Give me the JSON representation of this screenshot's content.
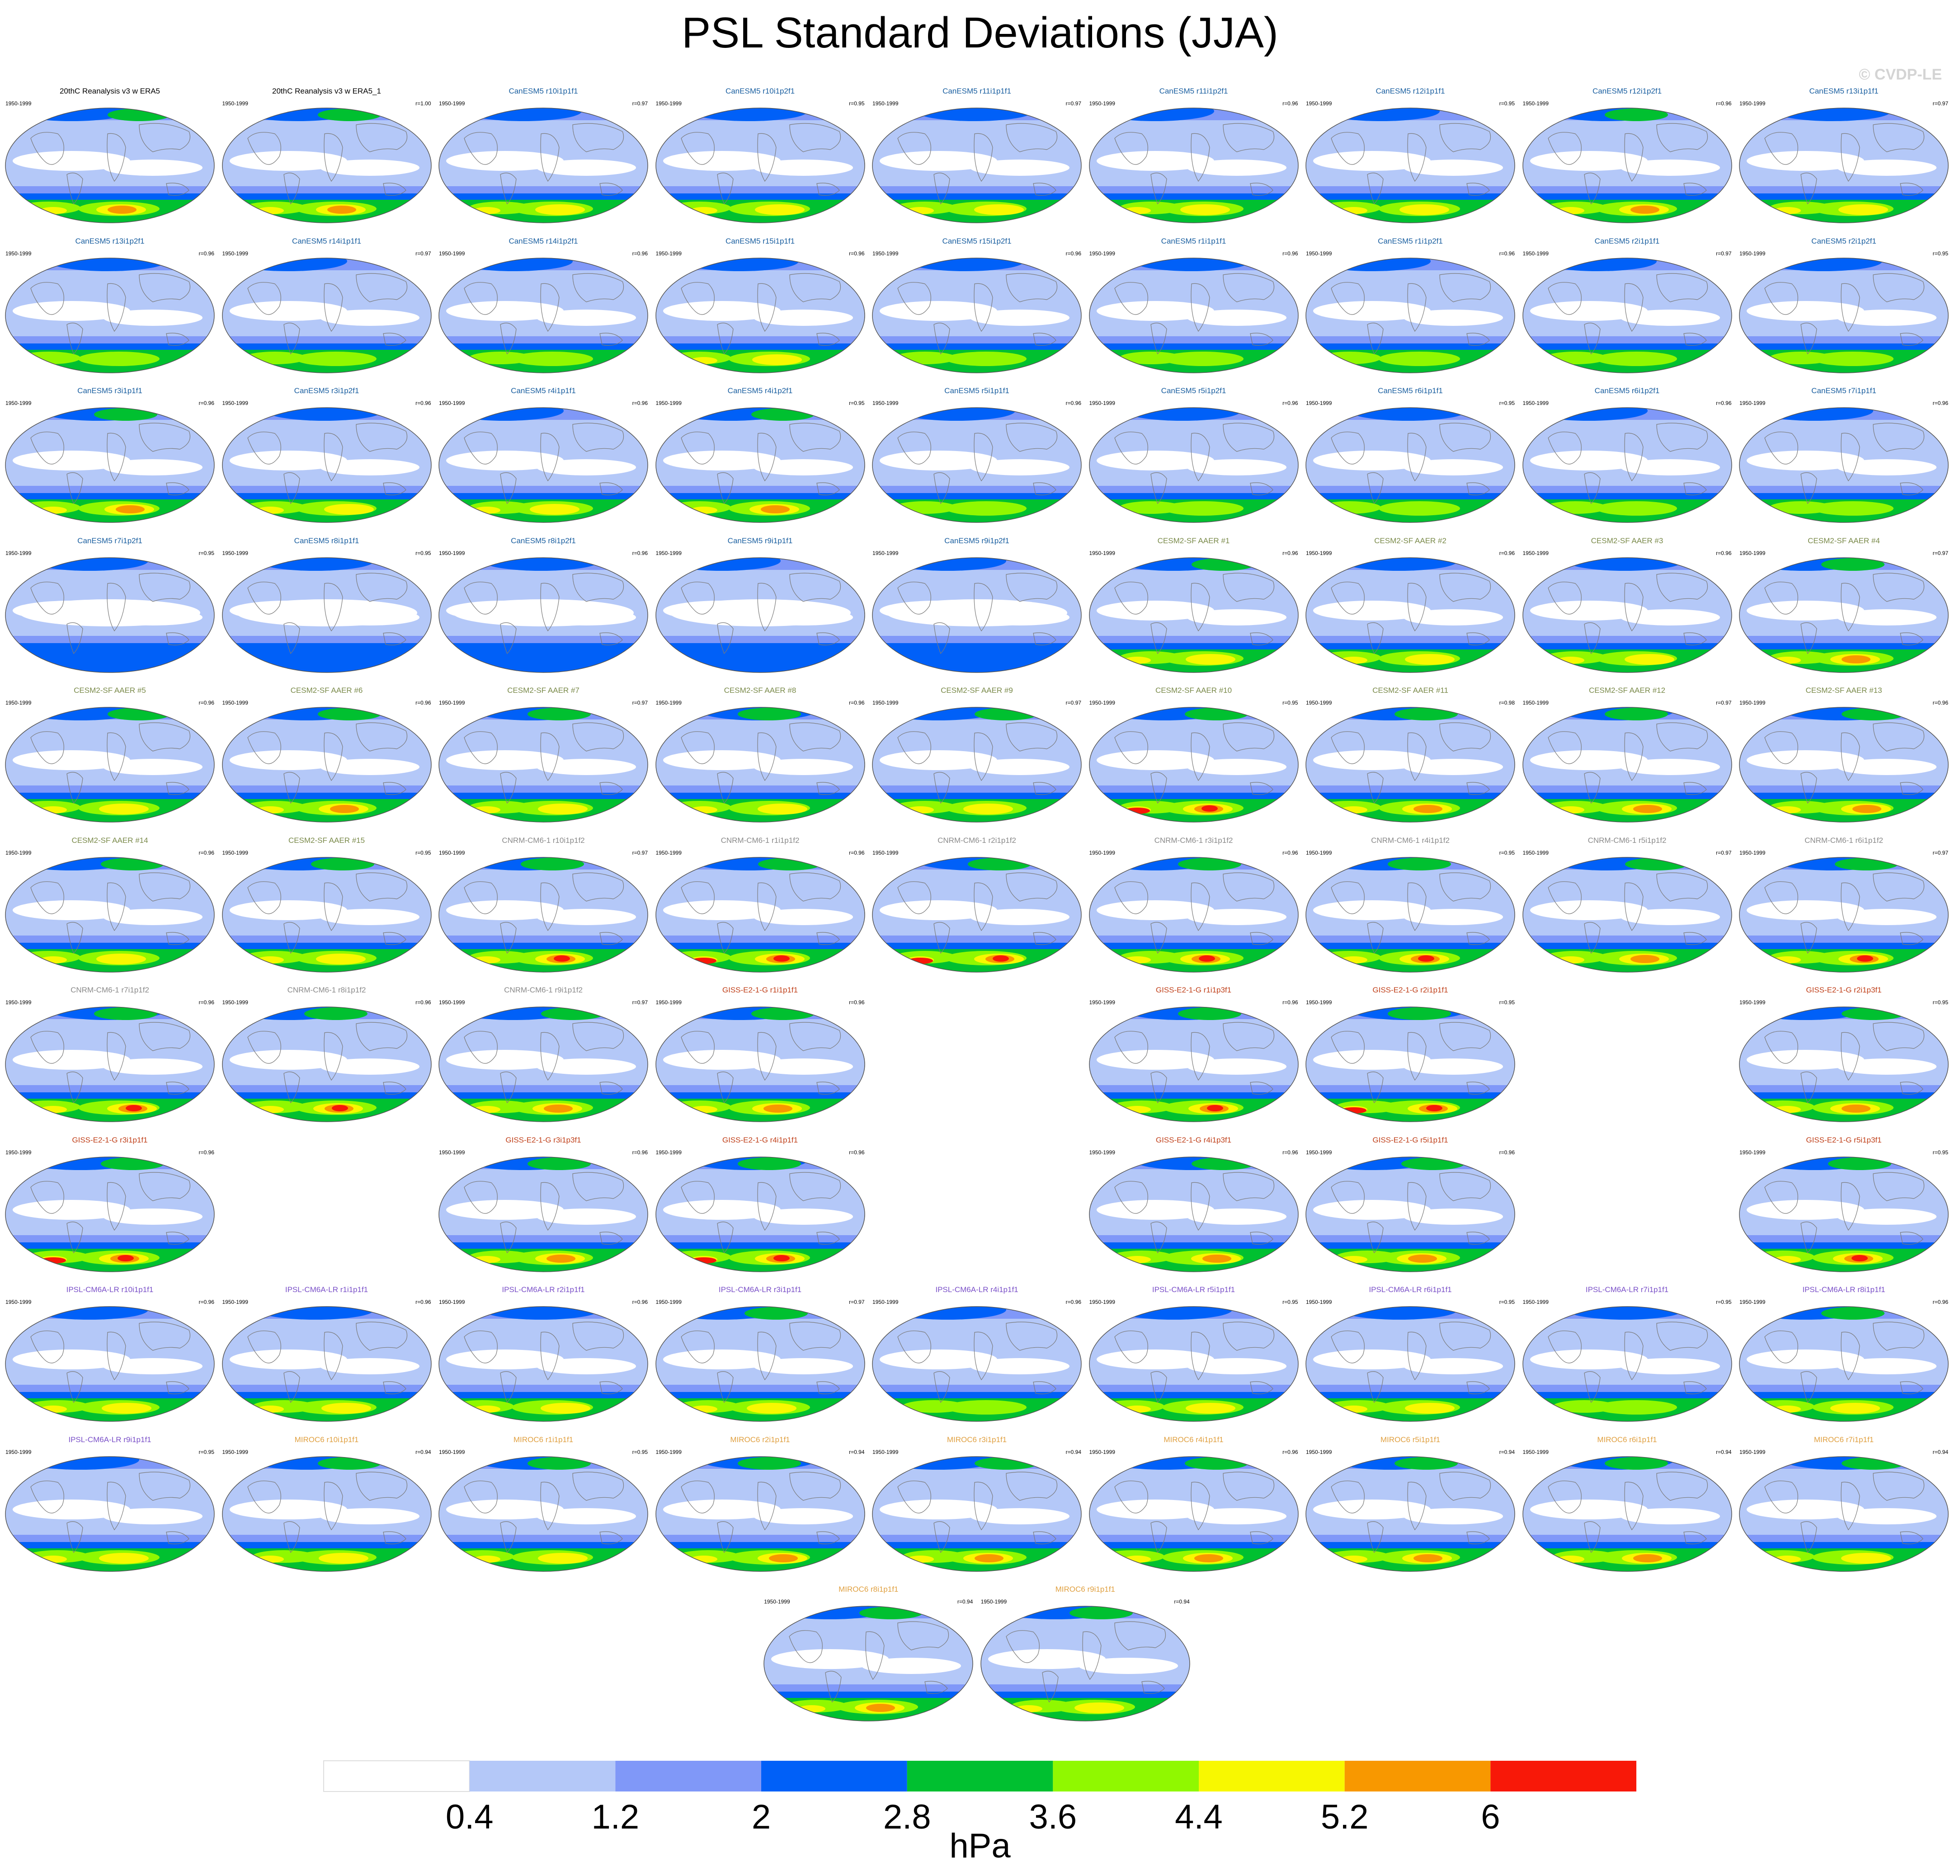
{
  "title": "PSL Standard Deviations (JJA)",
  "watermark": "© CVDP-LE",
  "chart_data": {
    "type": "heatmap",
    "description_units": "hPa",
    "colorbar": {
      "levels": [
        0.4,
        1.2,
        2,
        2.8,
        3.6,
        4.4,
        5.2,
        6
      ],
      "level_labels": [
        "0.4",
        "1.2",
        "2",
        "2.8",
        "3.6",
        "4.4",
        "5.2",
        "6"
      ],
      "colors": [
        "#ffffff",
        "#b4c8f8",
        "#8098f8",
        "#0060f8",
        "#00c030",
        "#90f800",
        "#f8f800",
        "#f89800",
        "#f81808"
      ],
      "units": "hPa"
    },
    "panels": [
      {
        "title": "20thC Reanalysis v3 w ERA5",
        "period": "1950-1999",
        "r": "",
        "row": 0,
        "col": 0,
        "color": "#000000",
        "strength": 1.0
      },
      {
        "title": "20thC Reanalysis v3 w ERA5_1",
        "period": "1950-1999",
        "r": "r=1.00",
        "row": 0,
        "col": 1,
        "color": "#000000",
        "strength": 1.0
      },
      {
        "title": "CanESM5 r10i1p1f1",
        "period": "1950-1999",
        "r": "r=0.97",
        "row": 0,
        "col": 2,
        "color": "#1a5fa0",
        "strength": 0.9
      },
      {
        "title": "CanESM5 r10i1p2f1",
        "period": "1950-1999",
        "r": "r=0.95",
        "row": 0,
        "col": 3,
        "color": "#1a5fa0",
        "strength": 0.9
      },
      {
        "title": "CanESM5 r11i1p1f1",
        "period": "1950-1999",
        "r": "r=0.97",
        "row": 0,
        "col": 4,
        "color": "#1a5fa0",
        "strength": 0.9
      },
      {
        "title": "CanESM5 r11i1p2f1",
        "period": "1950-1999",
        "r": "r=0.96",
        "row": 0,
        "col": 5,
        "color": "#1a5fa0",
        "strength": 0.9
      },
      {
        "title": "CanESM5 r12i1p1f1",
        "period": "1950-1999",
        "r": "r=0.95",
        "row": 0,
        "col": 6,
        "color": "#1a5fa0",
        "strength": 0.9
      },
      {
        "title": "CanESM5 r12i1p2f1",
        "period": "1950-1999",
        "r": "r=0.96",
        "row": 0,
        "col": 7,
        "color": "#1a5fa0",
        "strength": 1.0
      },
      {
        "title": "CanESM5 r13i1p1f1",
        "period": "1950-1999",
        "r": "r=0.97",
        "row": 0,
        "col": 8,
        "color": "#1a5fa0",
        "strength": 0.9
      },
      {
        "title": "CanESM5 r13i1p2f1",
        "period": "1950-1999",
        "r": "r=0.96",
        "row": 1,
        "col": 0,
        "color": "#1a5fa0",
        "strength": 0.85
      },
      {
        "title": "CanESM5 r14i1p1f1",
        "period": "1950-1999",
        "r": "r=0.97",
        "row": 1,
        "col": 1,
        "color": "#1a5fa0",
        "strength": 0.85
      },
      {
        "title": "CanESM5 r14i1p2f1",
        "period": "1950-1999",
        "r": "r=0.96",
        "row": 1,
        "col": 2,
        "color": "#1a5fa0",
        "strength": 0.85
      },
      {
        "title": "CanESM5 r15i1p1f1",
        "period": "1950-1999",
        "r": "r=0.96",
        "row": 1,
        "col": 3,
        "color": "#1a5fa0",
        "strength": 0.9
      },
      {
        "title": "CanESM5 r15i1p2f1",
        "period": "1950-1999",
        "r": "r=0.96",
        "row": 1,
        "col": 4,
        "color": "#1a5fa0",
        "strength": 0.85
      },
      {
        "title": "CanESM5 r1i1p1f1",
        "period": "1950-1999",
        "r": "r=0.96",
        "row": 1,
        "col": 5,
        "color": "#1a5fa0",
        "strength": 0.85
      },
      {
        "title": "CanESM5 r1i1p2f1",
        "period": "1950-1999",
        "r": "r=0.96",
        "row": 1,
        "col": 6,
        "color": "#1a5fa0",
        "strength": 0.85
      },
      {
        "title": "CanESM5 r2i1p1f1",
        "period": "1950-1999",
        "r": "r=0.97",
        "row": 1,
        "col": 7,
        "color": "#1a5fa0",
        "strength": 0.85
      },
      {
        "title": "CanESM5 r2i1p2f1",
        "period": "1950-1999",
        "r": "r=0.95",
        "row": 1,
        "col": 8,
        "color": "#1a5fa0",
        "strength": 0.85
      },
      {
        "title": "CanESM5 r3i1p1f1",
        "period": "1950-1999",
        "r": "r=0.96",
        "row": 2,
        "col": 0,
        "color": "#1a5fa0",
        "strength": 1.05
      },
      {
        "title": "CanESM5 r3i1p2f1",
        "period": "1950-1999",
        "r": "r=0.96",
        "row": 2,
        "col": 1,
        "color": "#1a5fa0",
        "strength": 0.9
      },
      {
        "title": "CanESM5 r4i1p1f1",
        "period": "1950-1999",
        "r": "r=0.96",
        "row": 2,
        "col": 2,
        "color": "#1a5fa0",
        "strength": 0.9
      },
      {
        "title": "CanESM5 r4i1p2f1",
        "period": "1950-1999",
        "r": "r=0.95",
        "row": 2,
        "col": 3,
        "color": "#1a5fa0",
        "strength": 1.0
      },
      {
        "title": "CanESM5 r5i1p1f1",
        "period": "1950-1999",
        "r": "r=0.96",
        "row": 2,
        "col": 4,
        "color": "#1a5fa0",
        "strength": 0.8
      },
      {
        "title": "CanESM5 r5i1p2f1",
        "period": "1950-1999",
        "r": "r=0.96",
        "row": 2,
        "col": 5,
        "color": "#1a5fa0",
        "strength": 0.8
      },
      {
        "title": "CanESM5 r6i1p1f1",
        "period": "1950-1999",
        "r": "r=0.95",
        "row": 2,
        "col": 6,
        "color": "#1a5fa0",
        "strength": 0.85
      },
      {
        "title": "CanESM5 r6i1p2f1",
        "period": "1950-1999",
        "r": "r=0.96",
        "row": 2,
        "col": 7,
        "color": "#1a5fa0",
        "strength": 0.85
      },
      {
        "title": "CanESM5 r7i1p1f1",
        "period": "1950-1999",
        "r": "r=0.96",
        "row": 2,
        "col": 8,
        "color": "#1a5fa0",
        "strength": 0.85
      },
      {
        "title": "CanESM5 r7i1p2f1",
        "period": "1950-1999",
        "r": "r=0.95",
        "row": 3,
        "col": 0,
        "color": "#1a5fa0",
        "strength": 0.55
      },
      {
        "title": "CanESM5 r8i1p1f1",
        "period": "1950-1999",
        "r": "r=0.95",
        "row": 3,
        "col": 1,
        "color": "#1a5fa0",
        "strength": 0.55
      },
      {
        "title": "CanESM5 r8i1p2f1",
        "period": "1950-1999",
        "r": "r=0.96",
        "row": 3,
        "col": 2,
        "color": "#1a5fa0",
        "strength": 0.55
      },
      {
        "title": "CanESM5 r9i1p1f1",
        "period": "1950-1999",
        "r": "",
        "row": 3,
        "col": 3,
        "color": "#1a5fa0",
        "strength": 0.55
      },
      {
        "title": "CanESM5 r9i1p2f1",
        "period": "1950-1999",
        "r": "",
        "row": 3,
        "col": 4,
        "color": "#1a5fa0",
        "strength": 0.55
      },
      {
        "title": "CESM2-SF AAER #1",
        "period": "1950-1999",
        "r": "r=0.96",
        "row": 3,
        "col": 5,
        "color": "#7a8a4a",
        "strength": 0.95
      },
      {
        "title": "CESM2-SF AAER #2",
        "period": "1950-1999",
        "r": "r=0.96",
        "row": 3,
        "col": 6,
        "color": "#7a8a4a",
        "strength": 0.9
      },
      {
        "title": "CESM2-SF AAER #3",
        "period": "1950-1999",
        "r": "r=0.96",
        "row": 3,
        "col": 7,
        "color": "#7a8a4a",
        "strength": 0.9
      },
      {
        "title": "CESM2-SF AAER #4",
        "period": "1950-1999",
        "r": "r=0.97",
        "row": 3,
        "col": 8,
        "color": "#7a8a4a",
        "strength": 1.0
      },
      {
        "title": "CESM2-SF AAER #5",
        "period": "1950-1999",
        "r": "r=0.96",
        "row": 4,
        "col": 0,
        "color": "#7a8a4a",
        "strength": 0.95
      },
      {
        "title": "CESM2-SF AAER #6",
        "period": "1950-1999",
        "r": "r=0.96",
        "row": 4,
        "col": 1,
        "color": "#7a8a4a",
        "strength": 1.0
      },
      {
        "title": "CESM2-SF AAER #7",
        "period": "1950-1999",
        "r": "r=0.97",
        "row": 4,
        "col": 2,
        "color": "#7a8a4a",
        "strength": 0.95
      },
      {
        "title": "CESM2-SF AAER #8",
        "period": "1950-1999",
        "r": "r=0.96",
        "row": 4,
        "col": 3,
        "color": "#7a8a4a",
        "strength": 0.95
      },
      {
        "title": "CESM2-SF AAER #9",
        "period": "1950-1999",
        "r": "r=0.97",
        "row": 4,
        "col": 4,
        "color": "#7a8a4a",
        "strength": 0.95
      },
      {
        "title": "CESM2-SF AAER #10",
        "period": "1950-1999",
        "r": "r=0.95",
        "row": 4,
        "col": 5,
        "color": "#7a8a4a",
        "strength": 1.25
      },
      {
        "title": "CESM2-SF AAER #11",
        "period": "1950-1999",
        "r": "r=0.98",
        "row": 4,
        "col": 6,
        "color": "#7a8a4a",
        "strength": 1.0
      },
      {
        "title": "CESM2-SF AAER #12",
        "period": "1950-1999",
        "r": "r=0.97",
        "row": 4,
        "col": 7,
        "color": "#7a8a4a",
        "strength": 1.1
      },
      {
        "title": "CESM2-SF AAER #13",
        "period": "1950-1999",
        "r": "r=0.96",
        "row": 4,
        "col": 8,
        "color": "#7a8a4a",
        "strength": 1.0
      },
      {
        "title": "CESM2-SF AAER #14",
        "period": "1950-1999",
        "r": "r=0.96",
        "row": 5,
        "col": 0,
        "color": "#7a8a4a",
        "strength": 0.95
      },
      {
        "title": "CESM2-SF AAER #15",
        "period": "1950-1999",
        "r": "r=0.95",
        "row": 5,
        "col": 1,
        "color": "#7a8a4a",
        "strength": 0.95
      },
      {
        "title": "CNRM-CM6-1 r10i1p1f2",
        "period": "1950-1999",
        "r": "r=0.97",
        "row": 5,
        "col": 2,
        "color": "#8a8a8a",
        "strength": 1.15
      },
      {
        "title": "CNRM-CM6-1 r1i1p1f2",
        "period": "1950-1999",
        "r": "r=0.96",
        "row": 5,
        "col": 3,
        "color": "#8a8a8a",
        "strength": 1.25
      },
      {
        "title": "CNRM-CM6-1 r2i1p1f2",
        "period": "1950-1999",
        "r": "",
        "row": 5,
        "col": 4,
        "color": "#8a8a8a",
        "strength": 1.2
      },
      {
        "title": "CNRM-CM6-1 r3i1p1f2",
        "period": "1950-1999",
        "r": "r=0.96",
        "row": 5,
        "col": 5,
        "color": "#8a8a8a",
        "strength": 1.15
      },
      {
        "title": "CNRM-CM6-1 r4i1p1f2",
        "period": "1950-1999",
        "r": "r=0.95",
        "row": 5,
        "col": 6,
        "color": "#8a8a8a",
        "strength": 1.15
      },
      {
        "title": "CNRM-CM6-1 r5i1p1f2",
        "period": "1950-1999",
        "r": "r=0.97",
        "row": 5,
        "col": 7,
        "color": "#8a8a8a",
        "strength": 1.05
      },
      {
        "title": "CNRM-CM6-1 r6i1p1f2",
        "period": "1950-1999",
        "r": "r=0.97",
        "row": 5,
        "col": 8,
        "color": "#8a8a8a",
        "strength": 1.15
      },
      {
        "title": "CNRM-CM6-1 r7i1p1f2",
        "period": "1950-1999",
        "r": "r=0.96",
        "row": 6,
        "col": 0,
        "color": "#8a8a8a",
        "strength": 1.15
      },
      {
        "title": "CNRM-CM6-1 r8i1p1f2",
        "period": "1950-1999",
        "r": "r=0.96",
        "row": 6,
        "col": 1,
        "color": "#8a8a8a",
        "strength": 1.15
      },
      {
        "title": "CNRM-CM6-1 r9i1p1f2",
        "period": "1950-1999",
        "r": "r=0.97",
        "row": 6,
        "col": 2,
        "color": "#8a8a8a",
        "strength": 1.1
      },
      {
        "title": "GISS-E2-1-G r1i1p1f1",
        "period": "1950-1999",
        "r": "r=0.96",
        "row": 6,
        "col": 3,
        "color": "#c0401a",
        "strength": 1.1
      },
      {
        "title": "GISS-E2-1-G r1i1p3f1",
        "period": "1950-1999",
        "r": "r=0.96",
        "row": 6,
        "col": 5,
        "color": "#c0401a",
        "strength": 1.15
      },
      {
        "title": "GISS-E2-1-G r2i1p1f1",
        "period": "1950-1999",
        "r": "r=0.95",
        "row": 6,
        "col": 6,
        "color": "#c0401a",
        "strength": 1.2
      },
      {
        "title": "GISS-E2-1-G r2i1p3f1",
        "period": "1950-1999",
        "r": "r=0.95",
        "row": 6,
        "col": 8,
        "color": "#c0401a",
        "strength": 1.0
      },
      {
        "title": "GISS-E2-1-G r3i1p1f1",
        "period": "1950-1999",
        "r": "r=0.96",
        "row": 7,
        "col": 0,
        "color": "#c0401a",
        "strength": 1.2
      },
      {
        "title": "GISS-E2-1-G r3i1p3f1",
        "period": "1950-1999",
        "r": "r=0.96",
        "row": 7,
        "col": 2,
        "color": "#c0401a",
        "strength": 1.1
      },
      {
        "title": "GISS-E2-1-G r4i1p1f1",
        "period": "1950-1999",
        "r": "r=0.96",
        "row": 7,
        "col": 3,
        "color": "#c0401a",
        "strength": 1.2
      },
      {
        "title": "GISS-E2-1-G r4i1p3f1",
        "period": "1950-1999",
        "r": "r=0.96",
        "row": 7,
        "col": 5,
        "color": "#c0401a",
        "strength": 1.1
      },
      {
        "title": "GISS-E2-1-G r5i1p1f1",
        "period": "1950-1999",
        "r": "r=0.96",
        "row": 7,
        "col": 6,
        "color": "#c0401a",
        "strength": 1.1
      },
      {
        "title": "GISS-E2-1-G r5i1p3f1",
        "period": "1950-1999",
        "r": "r=0.95",
        "row": 7,
        "col": 8,
        "color": "#c0401a",
        "strength": 1.15
      },
      {
        "title": "IPSL-CM6A-LR r10i1p1f1",
        "period": "1950-1999",
        "r": "r=0.96",
        "row": 8,
        "col": 0,
        "color": "#7a50c8",
        "strength": 0.9
      },
      {
        "title": "IPSL-CM6A-LR r1i1p1f1",
        "period": "1950-1999",
        "r": "r=0.96",
        "row": 8,
        "col": 1,
        "color": "#7a50c8",
        "strength": 0.9
      },
      {
        "title": "IPSL-CM6A-LR r2i1p1f1",
        "period": "1950-1999",
        "r": "r=0.96",
        "row": 8,
        "col": 2,
        "color": "#7a50c8",
        "strength": 0.9
      },
      {
        "title": "IPSL-CM6A-LR r3i1p1f1",
        "period": "1950-1999",
        "r": "r=0.97",
        "row": 8,
        "col": 3,
        "color": "#7a50c8",
        "strength": 0.95
      },
      {
        "title": "IPSL-CM6A-LR r4i1p1f1",
        "period": "1950-1999",
        "r": "r=0.96",
        "row": 8,
        "col": 4,
        "color": "#7a50c8",
        "strength": 0.85
      },
      {
        "title": "IPSL-CM6A-LR r5i1p1f1",
        "period": "1950-1999",
        "r": "r=0.95",
        "row": 8,
        "col": 5,
        "color": "#7a50c8",
        "strength": 0.9
      },
      {
        "title": "IPSL-CM6A-LR r6i1p1f1",
        "period": "1950-1999",
        "r": "r=0.95",
        "row": 8,
        "col": 6,
        "color": "#7a50c8",
        "strength": 0.9
      },
      {
        "title": "IPSL-CM6A-LR r7i1p1f1",
        "period": "1950-1999",
        "r": "r=0.95",
        "row": 8,
        "col": 7,
        "color": "#7a50c8",
        "strength": 0.85
      },
      {
        "title": "IPSL-CM6A-LR r8i1p1f1",
        "period": "1950-1999",
        "r": "r=0.96",
        "row": 8,
        "col": 8,
        "color": "#7a50c8",
        "strength": 0.95
      },
      {
        "title": "IPSL-CM6A-LR r9i1p1f1",
        "period": "1950-1999",
        "r": "r=0.95",
        "row": 9,
        "col": 0,
        "color": "#7a50c8",
        "strength": 0.9
      },
      {
        "title": "MIROC6 r10i1p1f1",
        "period": "1950-1999",
        "r": "r=0.94",
        "row": 9,
        "col": 1,
        "color": "#e0a040",
        "strength": 0.95
      },
      {
        "title": "MIROC6 r1i1p1f1",
        "period": "1950-1999",
        "r": "r=0.95",
        "row": 9,
        "col": 2,
        "color": "#e0a040",
        "strength": 0.95
      },
      {
        "title": "MIROC6 r2i1p1f1",
        "period": "1950-1999",
        "r": "r=0.94",
        "row": 9,
        "col": 3,
        "color": "#e0a040",
        "strength": 1.0
      },
      {
        "title": "MIROC6 r3i1p1f1",
        "period": "1950-1999",
        "r": "r=0.94",
        "row": 9,
        "col": 4,
        "color": "#e0a040",
        "strength": 1.05
      },
      {
        "title": "MIROC6 r4i1p1f1",
        "period": "1950-1999",
        "r": "r=0.96",
        "row": 9,
        "col": 5,
        "color": "#e0a040",
        "strength": 1.0
      },
      {
        "title": "MIROC6 r5i1p1f1",
        "period": "1950-1999",
        "r": "r=0.94",
        "row": 9,
        "col": 6,
        "color": "#e0a040",
        "strength": 1.0
      },
      {
        "title": "MIROC6 r6i1p1f1",
        "period": "1950-1999",
        "r": "r=0.94",
        "row": 9,
        "col": 7,
        "color": "#e0a040",
        "strength": 1.0
      },
      {
        "title": "MIROC6 r7i1p1f1",
        "period": "1950-1999",
        "r": "r=0.94",
        "row": 9,
        "col": 8,
        "color": "#e0a040",
        "strength": 0.95
      },
      {
        "title": "MIROC6 r8i1p1f1",
        "period": "1950-1999",
        "r": "r=0.94",
        "row": 10,
        "col": 3.5,
        "color": "#e0a040",
        "strength": 1.05
      },
      {
        "title": "MIROC6 r9i1p1f1",
        "period": "1950-1999",
        "r": "r=0.94",
        "row": 10,
        "col": 4.5,
        "color": "#e0a040",
        "strength": 0.95
      }
    ]
  }
}
